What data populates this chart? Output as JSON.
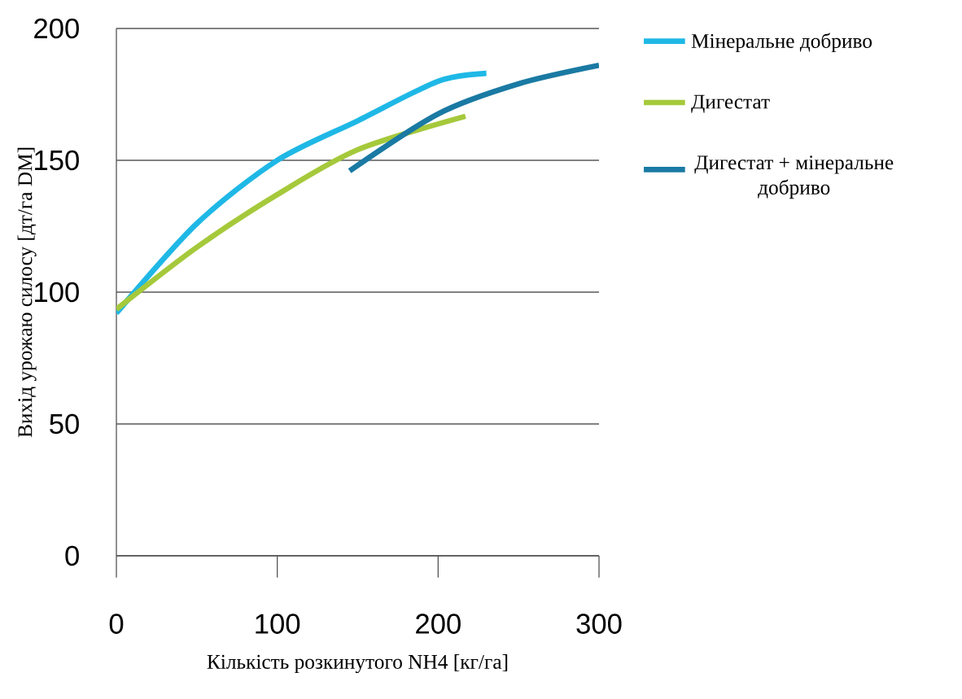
{
  "chart_data": {
    "type": "line",
    "xlabel": "Кількість розкинутого NH4 [кг/га]",
    "ylabel": "Вихід урожаю силосу [дт/га DM]",
    "xlim": [
      0,
      300
    ],
    "ylim": [
      0,
      200
    ],
    "xticks": [
      0,
      100,
      200,
      300
    ],
    "yticks": [
      0,
      50,
      100,
      150,
      200
    ],
    "grid": "y",
    "legend": "top right",
    "marker": "none",
    "line_style": "solid",
    "series": [
      {
        "name": "Мінеральне добриво",
        "color": "#1fb8e6",
        "x": [
          0,
          50,
          100,
          150,
          200,
          230
        ],
        "values": [
          92,
          126,
          150,
          165,
          180,
          183
        ]
      },
      {
        "name": "Дигестат",
        "color": "#a5c93b",
        "x": [
          0,
          50,
          100,
          150,
          217
        ],
        "values": [
          93.5,
          117,
          137,
          154,
          166.7
        ]
      },
      {
        "name": "Дигестат + мінеральне добриво",
        "color": "#1a7aa3",
        "x": [
          145,
          200,
          250,
          300
        ],
        "values": [
          146,
          167.6,
          179,
          186
        ]
      }
    ]
  }
}
